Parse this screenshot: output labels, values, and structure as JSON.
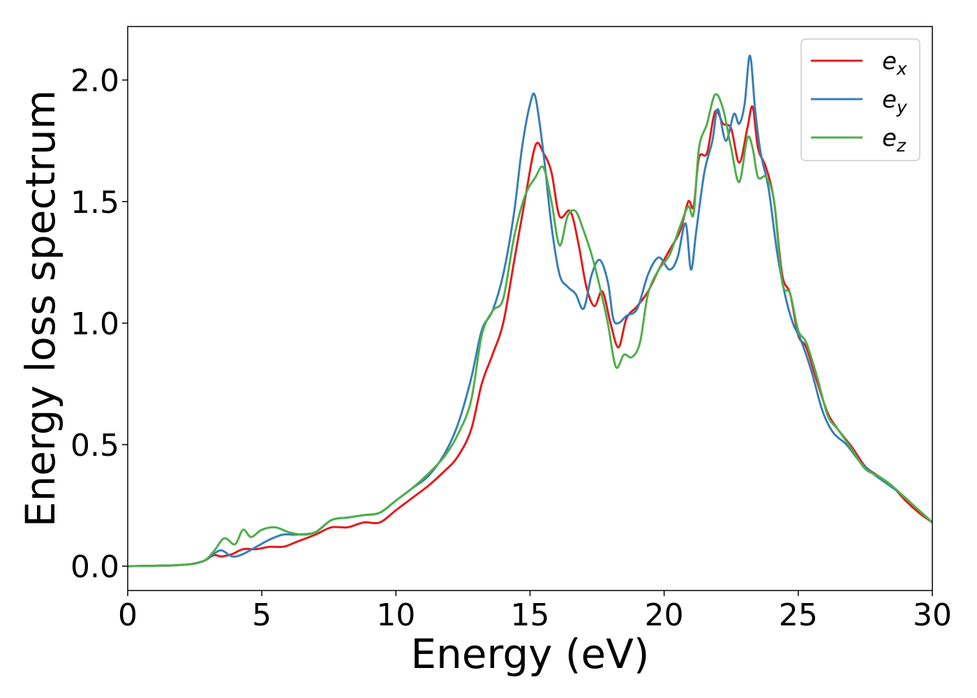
{
  "chart_data": {
    "type": "line",
    "title": "",
    "xlabel": "Energy (eV)",
    "ylabel": "Energy loss spectrum",
    "xlim": [
      0,
      30
    ],
    "ylim": [
      -0.1,
      2.22
    ],
    "xticks": [
      0,
      5,
      10,
      15,
      20,
      25,
      30
    ],
    "xtick_labels": [
      "0",
      "5",
      "10",
      "15",
      "20",
      "25",
      "30"
    ],
    "yticks": [
      0.0,
      0.5,
      1.0,
      1.5,
      2.0
    ],
    "ytick_labels": [
      "0.0",
      "0.5",
      "1.0",
      "1.5",
      "2.0"
    ],
    "grid": false,
    "legend_position": "top-right",
    "series": [
      {
        "name": "e_x",
        "label_base": "e",
        "label_sub": "x",
        "color": "#e41a1c",
        "x": [
          0,
          2,
          2.8,
          3.2,
          3.5,
          3.9,
          4.3,
          4.8,
          5.3,
          5.8,
          6.3,
          7,
          7.6,
          8.2,
          8.8,
          9.4,
          10,
          10.6,
          11.2,
          11.8,
          12.3,
          12.8,
          13.2,
          13.6,
          14,
          14.4,
          14.8,
          15.2,
          15.5,
          15.8,
          16.1,
          16.5,
          16.8,
          17.1,
          17.4,
          17.7,
          18,
          18.3,
          18.6,
          19,
          19.4,
          19.8,
          20.2,
          20.6,
          20.9,
          21.1,
          21.3,
          21.6,
          21.9,
          22.2,
          22.5,
          22.8,
          23.1,
          23.3,
          23.5,
          23.8,
          24.1,
          24.4,
          24.7,
          25,
          25.3,
          25.7,
          26.1,
          26.5,
          27,
          27.5,
          28,
          28.5,
          29,
          29.5,
          30
        ],
        "y": [
          0.0,
          0.005,
          0.02,
          0.045,
          0.04,
          0.05,
          0.07,
          0.07,
          0.08,
          0.08,
          0.1,
          0.13,
          0.16,
          0.16,
          0.18,
          0.18,
          0.23,
          0.28,
          0.33,
          0.39,
          0.45,
          0.56,
          0.75,
          0.87,
          1.0,
          1.25,
          1.5,
          1.73,
          1.7,
          1.62,
          1.44,
          1.46,
          1.33,
          1.15,
          1.07,
          1.13,
          1.0,
          0.9,
          1.02,
          1.07,
          1.13,
          1.22,
          1.3,
          1.38,
          1.5,
          1.48,
          1.68,
          1.7,
          1.87,
          1.82,
          1.8,
          1.66,
          1.8,
          1.89,
          1.72,
          1.64,
          1.5,
          1.2,
          1.12,
          0.95,
          0.9,
          0.76,
          0.63,
          0.56,
          0.49,
          0.41,
          0.37,
          0.33,
          0.27,
          0.22,
          0.18
        ]
      },
      {
        "name": "e_y",
        "label_base": "e",
        "label_sub": "y",
        "color": "#377eb8",
        "x": [
          0,
          2,
          2.8,
          3.2,
          3.5,
          3.9,
          4.3,
          4.8,
          5.3,
          5.8,
          6.3,
          7,
          7.6,
          8.2,
          8.8,
          9.4,
          10,
          10.6,
          11.2,
          11.8,
          12.3,
          12.8,
          13.2,
          13.6,
          14,
          14.4,
          14.7,
          15,
          15.2,
          15.5,
          15.8,
          16.1,
          16.4,
          16.7,
          17,
          17.3,
          17.6,
          17.9,
          18.1,
          18.3,
          18.6,
          19,
          19.4,
          19.8,
          20.2,
          20.5,
          20.8,
          21,
          21.2,
          21.5,
          21.8,
          22,
          22.3,
          22.6,
          22.8,
          23,
          23.2,
          23.4,
          23.6,
          23.9,
          24.2,
          24.5,
          24.8,
          25.1,
          25.5,
          25.9,
          26.3,
          26.8,
          27.3,
          27.8,
          28.3,
          28.8,
          29.3,
          30
        ],
        "y": [
          0.0,
          0.005,
          0.02,
          0.05,
          0.065,
          0.04,
          0.05,
          0.08,
          0.11,
          0.13,
          0.13,
          0.14,
          0.19,
          0.2,
          0.21,
          0.22,
          0.27,
          0.32,
          0.37,
          0.46,
          0.58,
          0.77,
          0.97,
          1.05,
          1.2,
          1.45,
          1.72,
          1.9,
          1.93,
          1.7,
          1.4,
          1.2,
          1.15,
          1.12,
          1.06,
          1.2,
          1.26,
          1.17,
          1.02,
          1.0,
          1.03,
          1.06,
          1.2,
          1.27,
          1.22,
          1.27,
          1.41,
          1.22,
          1.38,
          1.62,
          1.75,
          1.88,
          1.75,
          1.86,
          1.82,
          1.9,
          2.1,
          1.87,
          1.7,
          1.55,
          1.3,
          1.12,
          1.0,
          0.93,
          0.8,
          0.64,
          0.55,
          0.5,
          0.43,
          0.38,
          0.34,
          0.3,
          0.25,
          0.18
        ]
      },
      {
        "name": "e_z",
        "label_base": "e",
        "label_sub": "z",
        "color": "#4daf4a",
        "x": [
          0,
          2,
          2.8,
          3.2,
          3.6,
          4,
          4.3,
          4.6,
          5,
          5.5,
          6,
          6.5,
          7,
          7.6,
          8.2,
          8.8,
          9.4,
          10,
          10.6,
          11.2,
          11.8,
          12.3,
          12.8,
          13.2,
          13.6,
          14,
          14.4,
          14.8,
          15.2,
          15.5,
          15.8,
          16.1,
          16.4,
          16.7,
          17,
          17.3,
          17.6,
          17.9,
          18.2,
          18.5,
          18.8,
          19.1,
          19.4,
          19.8,
          20.2,
          20.6,
          20.9,
          21.1,
          21.3,
          21.6,
          21.9,
          22.2,
          22.5,
          22.8,
          23.1,
          23.3,
          23.5,
          23.8,
          24.1,
          24.4,
          24.7,
          25,
          25.3,
          25.7,
          26.1,
          26.5,
          27,
          27.5,
          28,
          28.5,
          29,
          29.5,
          30
        ],
        "y": [
          0.0,
          0.005,
          0.02,
          0.06,
          0.115,
          0.09,
          0.15,
          0.12,
          0.15,
          0.16,
          0.14,
          0.13,
          0.14,
          0.19,
          0.2,
          0.21,
          0.22,
          0.27,
          0.32,
          0.38,
          0.45,
          0.54,
          0.68,
          0.95,
          1.05,
          1.1,
          1.35,
          1.52,
          1.6,
          1.64,
          1.5,
          1.32,
          1.44,
          1.46,
          1.38,
          1.28,
          1.15,
          1.0,
          0.82,
          0.87,
          0.86,
          0.92,
          1.12,
          1.22,
          1.28,
          1.4,
          1.48,
          1.45,
          1.72,
          1.82,
          1.94,
          1.88,
          1.72,
          1.58,
          1.76,
          1.72,
          1.6,
          1.6,
          1.5,
          1.17,
          1.12,
          0.97,
          0.92,
          0.78,
          0.62,
          0.56,
          0.48,
          0.4,
          0.37,
          0.33,
          0.28,
          0.23,
          0.18
        ]
      }
    ]
  }
}
